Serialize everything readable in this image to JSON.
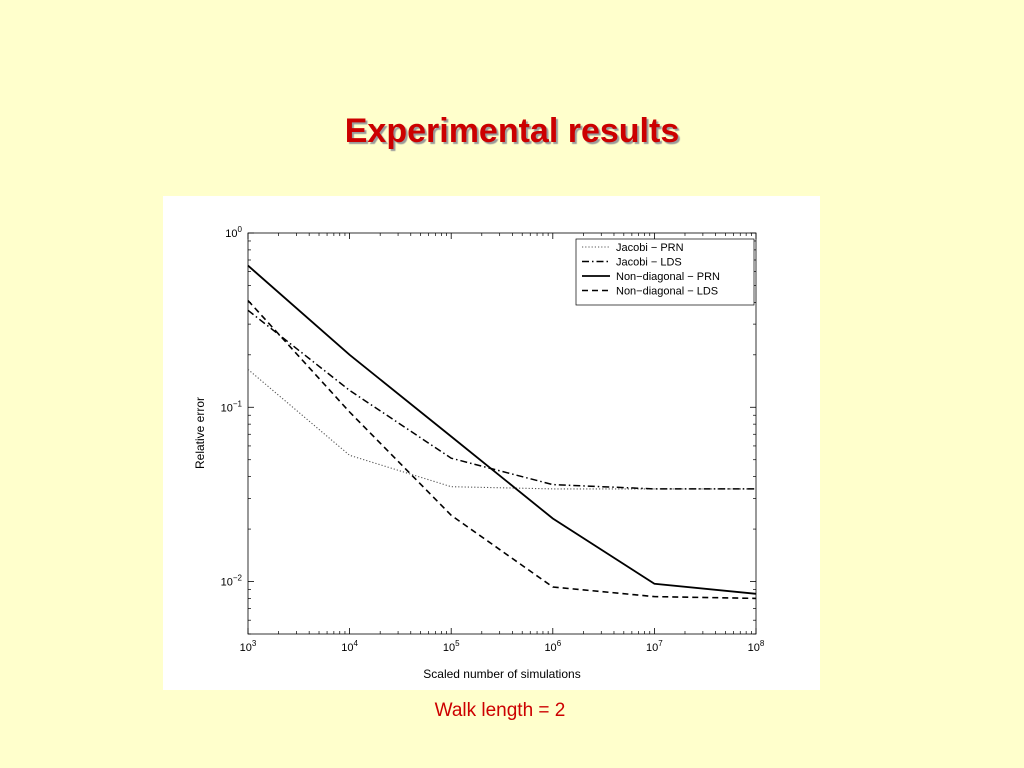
{
  "slide": {
    "title": "Experimental results",
    "caption": "Walk length = 2"
  },
  "colors": {
    "background": "#ffffcc",
    "title": "#cc0000",
    "caption": "#cc0000"
  },
  "chart_data": {
    "type": "line",
    "title": "",
    "xlabel": "Scaled number of simulations",
    "ylabel": "Relative error",
    "xscale": "log",
    "yscale": "log",
    "xlim": [
      1000,
      100000000
    ],
    "ylim": [
      0.005,
      1
    ],
    "grid": false,
    "legend_position": "top-right",
    "x_ticks": [
      {
        "value": 1000,
        "base": "10",
        "exp": "3"
      },
      {
        "value": 10000,
        "base": "10",
        "exp": "4"
      },
      {
        "value": 100000,
        "base": "10",
        "exp": "5"
      },
      {
        "value": 1000000,
        "base": "10",
        "exp": "6"
      },
      {
        "value": 10000000,
        "base": "10",
        "exp": "7"
      },
      {
        "value": 100000000,
        "base": "10",
        "exp": "8"
      }
    ],
    "y_ticks": [
      {
        "value": 1,
        "base": "10",
        "exp": "0"
      },
      {
        "value": 0.1,
        "base": "10",
        "exp": "−1"
      },
      {
        "value": 0.01,
        "base": "10",
        "exp": "−2"
      }
    ],
    "x": [
      1000,
      10000,
      100000,
      1000000,
      10000000,
      100000000
    ],
    "series": [
      {
        "name": "Jacobi − PRN",
        "style": "dotted",
        "values": [
          0.165,
          0.053,
          0.035,
          0.034,
          0.034,
          0.034
        ]
      },
      {
        "name": "Jacobi − LDS",
        "style": "dashdot",
        "values": [
          0.36,
          0.125,
          0.051,
          0.036,
          0.034,
          0.034
        ]
      },
      {
        "name": "Non−diagonal − PRN",
        "style": "solid",
        "values": [
          0.65,
          0.2,
          0.068,
          0.023,
          0.0097,
          0.0085
        ]
      },
      {
        "name": "Non−diagonal − LDS",
        "style": "dashed",
        "values": [
          0.41,
          0.094,
          0.024,
          0.0093,
          0.0082,
          0.008
        ]
      }
    ]
  }
}
